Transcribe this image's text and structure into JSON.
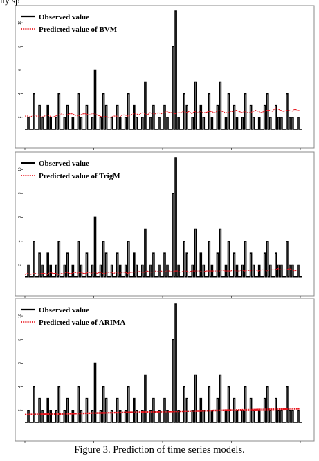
{
  "page_top_text": "ity sp",
  "caption": "Figure 3.    Prediction of time series models.",
  "chart_data": [
    {
      "type": "line",
      "legend": [
        "Observed value",
        "Predicted value of BVM"
      ],
      "legend_position": "top-left",
      "ylim": [
        0,
        11
      ],
      "yticks": [
        2,
        4,
        6,
        8,
        10
      ],
      "xlim": [
        0,
        100
      ],
      "colors": {
        "observed": "#000000",
        "predicted": "#e8141c"
      },
      "series": [
        {
          "name": "Observed value",
          "values": [
            1,
            2,
            1,
            4,
            1,
            3,
            2,
            1,
            3,
            2,
            1,
            2,
            4,
            1,
            2,
            3,
            1,
            2,
            1,
            4,
            2,
            1,
            3,
            1,
            2,
            6,
            1,
            2,
            4,
            3,
            1,
            2,
            1,
            3,
            2,
            1,
            2,
            4,
            1,
            3,
            2,
            1,
            2,
            5,
            1,
            2,
            3,
            1,
            2,
            1,
            3,
            2,
            1,
            8,
            11,
            2,
            1,
            4,
            3,
            1,
            2,
            5,
            1,
            3,
            2,
            1,
            4,
            2,
            1,
            3,
            5,
            1,
            2,
            4,
            1,
            3,
            2,
            1,
            2,
            4,
            1,
            3,
            2,
            1,
            2,
            1,
            3,
            4,
            2,
            1,
            3,
            2,
            2,
            1,
            4,
            2,
            2,
            1,
            2,
            1
          ]
        },
        {
          "name": "Predicted value of BVM",
          "style": "dotted",
          "values": [
            2.1,
            2.1,
            2.0,
            2.2,
            2.1,
            2.1,
            2.0,
            2.1,
            2.2,
            2.1,
            2.0,
            2.1,
            2.2,
            2.3,
            2.2,
            2.2,
            2.3,
            2.3,
            2.2,
            2.1,
            2.2,
            2.3,
            2.3,
            2.2,
            2.3,
            2.3,
            2.2,
            2.1,
            2.0,
            2.1,
            2.0,
            2.0,
            2.1,
            2.1,
            2.0,
            2.2,
            2.2,
            2.1,
            2.2,
            2.3,
            2.3,
            2.2,
            2.4,
            2.3,
            2.2,
            2.4,
            2.3,
            2.3,
            2.4,
            2.3,
            2.4,
            2.5,
            2.4,
            2.4,
            2.3,
            2.4,
            2.4,
            2.5,
            2.4,
            2.5,
            2.3,
            2.5,
            2.4,
            2.5,
            2.4,
            2.4,
            2.5,
            2.5,
            2.4,
            2.5,
            2.6,
            2.5,
            2.4,
            2.4,
            2.5,
            2.5,
            2.6,
            2.5,
            2.4,
            2.5,
            2.4,
            2.4,
            2.5,
            2.6,
            2.5,
            2.4,
            2.5,
            2.6,
            2.6,
            2.5,
            2.8,
            2.7,
            2.6,
            2.5,
            2.6,
            2.6,
            2.5,
            2.7,
            2.6,
            2.6
          ]
        }
      ]
    },
    {
      "type": "line",
      "legend": [
        "Observed value",
        "Predicted value of TrigM"
      ],
      "legend_position": "top-left",
      "ylim": [
        0,
        11
      ],
      "yticks": [
        2,
        4,
        6,
        8,
        10
      ],
      "xlim": [
        0,
        100
      ],
      "colors": {
        "observed": "#000000",
        "predicted": "#e8141c"
      },
      "series": [
        {
          "name": "Observed value",
          "values": [
            1,
            2,
            1,
            4,
            1,
            3,
            2,
            1,
            3,
            2,
            1,
            2,
            4,
            1,
            2,
            3,
            1,
            2,
            1,
            4,
            2,
            1,
            3,
            1,
            2,
            6,
            1,
            2,
            4,
            3,
            1,
            2,
            1,
            3,
            2,
            1,
            2,
            4,
            1,
            3,
            2,
            1,
            2,
            5,
            1,
            2,
            3,
            1,
            2,
            1,
            3,
            2,
            1,
            8,
            11,
            2,
            1,
            4,
            3,
            1,
            2,
            5,
            1,
            3,
            2,
            1,
            4,
            2,
            1,
            3,
            5,
            1,
            2,
            4,
            1,
            3,
            2,
            1,
            2,
            4,
            1,
            3,
            2,
            1,
            2,
            1,
            3,
            4,
            2,
            1,
            3,
            2,
            2,
            1,
            4,
            2,
            2,
            1,
            2,
            1
          ]
        },
        {
          "name": "Predicted value of TrigM",
          "style": "dotted",
          "values": [
            1.2,
            1.3,
            1.2,
            1.3,
            1.3,
            1.2,
            1.3,
            1.3,
            1.2,
            1.4,
            1.3,
            1.3,
            1.2,
            1.3,
            1.3,
            1.4,
            1.3,
            1.3,
            1.4,
            1.3,
            1.4,
            1.3,
            1.3,
            1.4,
            1.3,
            1.4,
            1.3,
            1.4,
            1.3,
            1.3,
            1.4,
            1.4,
            1.3,
            1.4,
            1.3,
            1.4,
            1.4,
            1.3,
            1.4,
            1.4,
            1.4,
            1.5,
            1.4,
            1.4,
            1.5,
            1.4,
            1.4,
            1.5,
            1.4,
            1.5,
            1.4,
            1.5,
            1.5,
            1.4,
            1.5,
            1.5,
            1.4,
            1.5,
            1.5,
            1.4,
            1.5,
            1.5,
            1.5,
            1.5,
            1.4,
            1.5,
            1.5,
            1.5,
            1.5,
            1.5,
            1.5,
            1.6,
            1.5,
            1.5,
            1.5,
            1.6,
            1.5,
            1.5,
            1.6,
            1.5,
            1.6,
            1.5,
            1.6,
            1.6,
            1.5,
            1.6,
            1.6,
            1.5,
            1.6,
            1.6,
            1.6,
            1.7,
            1.6,
            1.6,
            1.6,
            1.7,
            1.6,
            1.5,
            1.6,
            1.6
          ]
        }
      ]
    },
    {
      "type": "line",
      "legend": [
        "Observed value",
        "Predicted value of ARIMA"
      ],
      "legend_position": "top-left",
      "ylim": [
        0,
        11
      ],
      "yticks": [
        2,
        4,
        6,
        8,
        10
      ],
      "xlim": [
        0,
        100
      ],
      "colors": {
        "observed": "#000000",
        "predicted": "#e8141c"
      },
      "series": [
        {
          "name": "Observed value",
          "values": [
            1,
            2,
            1,
            4,
            1,
            3,
            2,
            1,
            3,
            2,
            1,
            2,
            4,
            1,
            2,
            3,
            1,
            2,
            1,
            4,
            2,
            1,
            3,
            1,
            2,
            6,
            1,
            2,
            4,
            3,
            1,
            2,
            1,
            3,
            2,
            1,
            2,
            4,
            1,
            3,
            2,
            1,
            2,
            5,
            1,
            2,
            3,
            1,
            2,
            1,
            3,
            2,
            1,
            8,
            11,
            2,
            1,
            4,
            3,
            1,
            2,
            5,
            1,
            3,
            2,
            1,
            4,
            2,
            1,
            3,
            5,
            1,
            2,
            4,
            1,
            3,
            2,
            1,
            2,
            4,
            1,
            3,
            2,
            1,
            2,
            1,
            3,
            4,
            2,
            1,
            3,
            2,
            2,
            1,
            4,
            2,
            2,
            1,
            2,
            1
          ]
        },
        {
          "name": "Predicted value of ARIMA",
          "style": "dotted",
          "values": [
            1.65,
            1.65,
            1.66,
            1.66,
            1.67,
            1.67,
            1.68,
            1.68,
            1.69,
            1.69,
            1.7,
            1.7,
            1.71,
            1.71,
            1.72,
            1.72,
            1.73,
            1.73,
            1.74,
            1.74,
            1.75,
            1.75,
            1.76,
            1.76,
            1.77,
            1.77,
            1.78,
            1.78,
            1.79,
            1.79,
            1.8,
            1.8,
            1.81,
            1.81,
            1.82,
            1.82,
            1.83,
            1.83,
            1.84,
            1.84,
            1.85,
            1.85,
            1.86,
            1.86,
            1.87,
            1.87,
            1.88,
            1.88,
            1.89,
            1.89,
            1.9,
            1.9,
            1.91,
            1.91,
            1.92,
            1.92,
            1.93,
            1.93,
            1.94,
            1.94,
            1.95,
            1.95,
            1.96,
            1.96,
            1.97,
            1.97,
            1.98,
            1.98,
            1.99,
            1.99,
            2.0,
            2.0,
            2.01,
            2.01,
            2.02,
            2.02,
            2.03,
            2.03,
            2.04,
            2.04,
            2.05,
            2.05,
            2.06,
            2.06,
            2.07,
            2.07,
            2.08,
            2.08,
            2.09,
            2.09,
            2.1,
            2.1,
            2.11,
            2.11,
            2.12,
            2.12,
            2.13,
            2.13,
            2.14,
            2.14
          ]
        }
      ]
    }
  ]
}
